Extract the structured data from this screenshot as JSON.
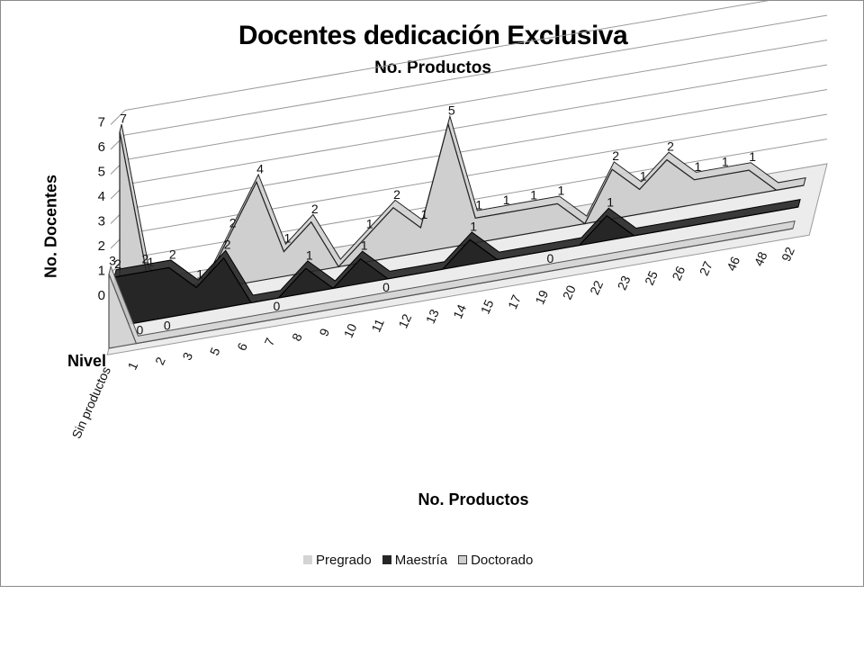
{
  "chart_data": {
    "type": "area",
    "title": "Docentes dedicación Exclusiva",
    "subtitle": "No. Productos",
    "xlabel": "No. Productos",
    "ylabel": "No. Docentes",
    "zlabel": "Nivel",
    "ylim": [
      0,
      7
    ],
    "y_ticks": [
      "0",
      "1",
      "2",
      "3",
      "4",
      "5",
      "6",
      "7"
    ],
    "categories": [
      "Sin productos",
      "1",
      "2",
      "3",
      "5",
      "6",
      "7",
      "8",
      "9",
      "10",
      "11",
      "12",
      "13",
      "14",
      "15",
      "17",
      "19",
      "20",
      "22",
      "23",
      "25",
      "26",
      "27",
      "46",
      "48",
      "92"
    ],
    "series": [
      {
        "name": "Pregrado",
        "values": [
          3,
          0,
          0,
          0,
          0,
          0,
          0,
          0,
          0,
          0,
          0,
          0,
          0,
          0,
          0,
          0,
          0,
          0,
          0,
          0,
          0,
          0,
          0,
          0,
          0,
          0
        ],
        "labels": [
          "3",
          "0",
          "0",
          "",
          "",
          "",
          "0",
          "",
          "",
          "",
          "0",
          "",
          "",
          "",
          "",
          "",
          "0",
          "",
          "",
          "",
          "",
          "",
          "",
          "",
          "",
          ""
        ],
        "color": "#d4d4d4"
      },
      {
        "name": "Maestría",
        "values": [
          2,
          2,
          2,
          1,
          2,
          0,
          0,
          1,
          0,
          1,
          0,
          0,
          0,
          1,
          0,
          0,
          0,
          0,
          1,
          0,
          0,
          0,
          0,
          0,
          0,
          0
        ],
        "labels": [
          "2",
          "2",
          "2",
          "1",
          "2",
          "",
          "",
          "1",
          "",
          "1",
          "",
          "",
          "",
          "1",
          "",
          "",
          "",
          "",
          "1",
          "",
          "",
          "",
          "",
          "",
          "",
          ""
        ],
        "color": "#262626"
      },
      {
        "name": "Doctorado",
        "values": [
          7,
          1,
          0,
          0,
          2,
          4,
          1,
          2,
          0,
          1,
          2,
          1,
          5,
          1,
          1,
          1,
          1,
          0,
          2,
          1,
          2,
          1,
          1,
          1,
          0,
          0
        ],
        "labels": [
          "7",
          "1",
          "",
          "",
          "2",
          "4",
          "1",
          "2",
          "",
          "1",
          "2",
          "1",
          "5",
          "1",
          "1",
          "1",
          "1",
          "",
          "2",
          "1",
          "2",
          "1",
          "1",
          "1",
          "",
          ""
        ],
        "color": "#cfcfcf"
      }
    ],
    "legend": "bottom",
    "grid": true
  }
}
